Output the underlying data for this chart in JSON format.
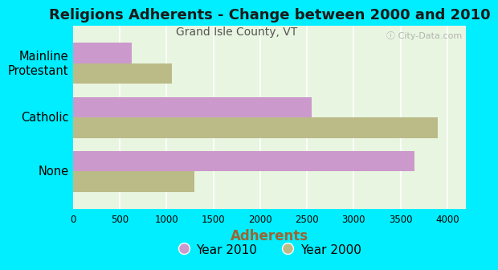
{
  "title": "Religions Adherents - Change between 2000 and 2010",
  "subtitle": "Grand Isle County, VT",
  "categories": [
    "None",
    "Catholic",
    "Mainline\nProtestant"
  ],
  "year2010_values": [
    3650,
    2550,
    630
  ],
  "year2000_values": [
    1300,
    3900,
    1060
  ],
  "color_2010": "#cc99cc",
  "color_2000": "#bbbb88",
  "xlabel": "Adherents",
  "xlim": [
    0,
    4200
  ],
  "xticks": [
    0,
    500,
    1000,
    1500,
    2000,
    2500,
    3000,
    3500,
    4000
  ],
  "background_color": "#00eeff",
  "plot_bg_color": "#e8f5e0",
  "grid_color": "#ffffff",
  "title_fontsize": 13,
  "subtitle_fontsize": 10,
  "xlabel_color": "#996633",
  "bar_height": 0.38
}
